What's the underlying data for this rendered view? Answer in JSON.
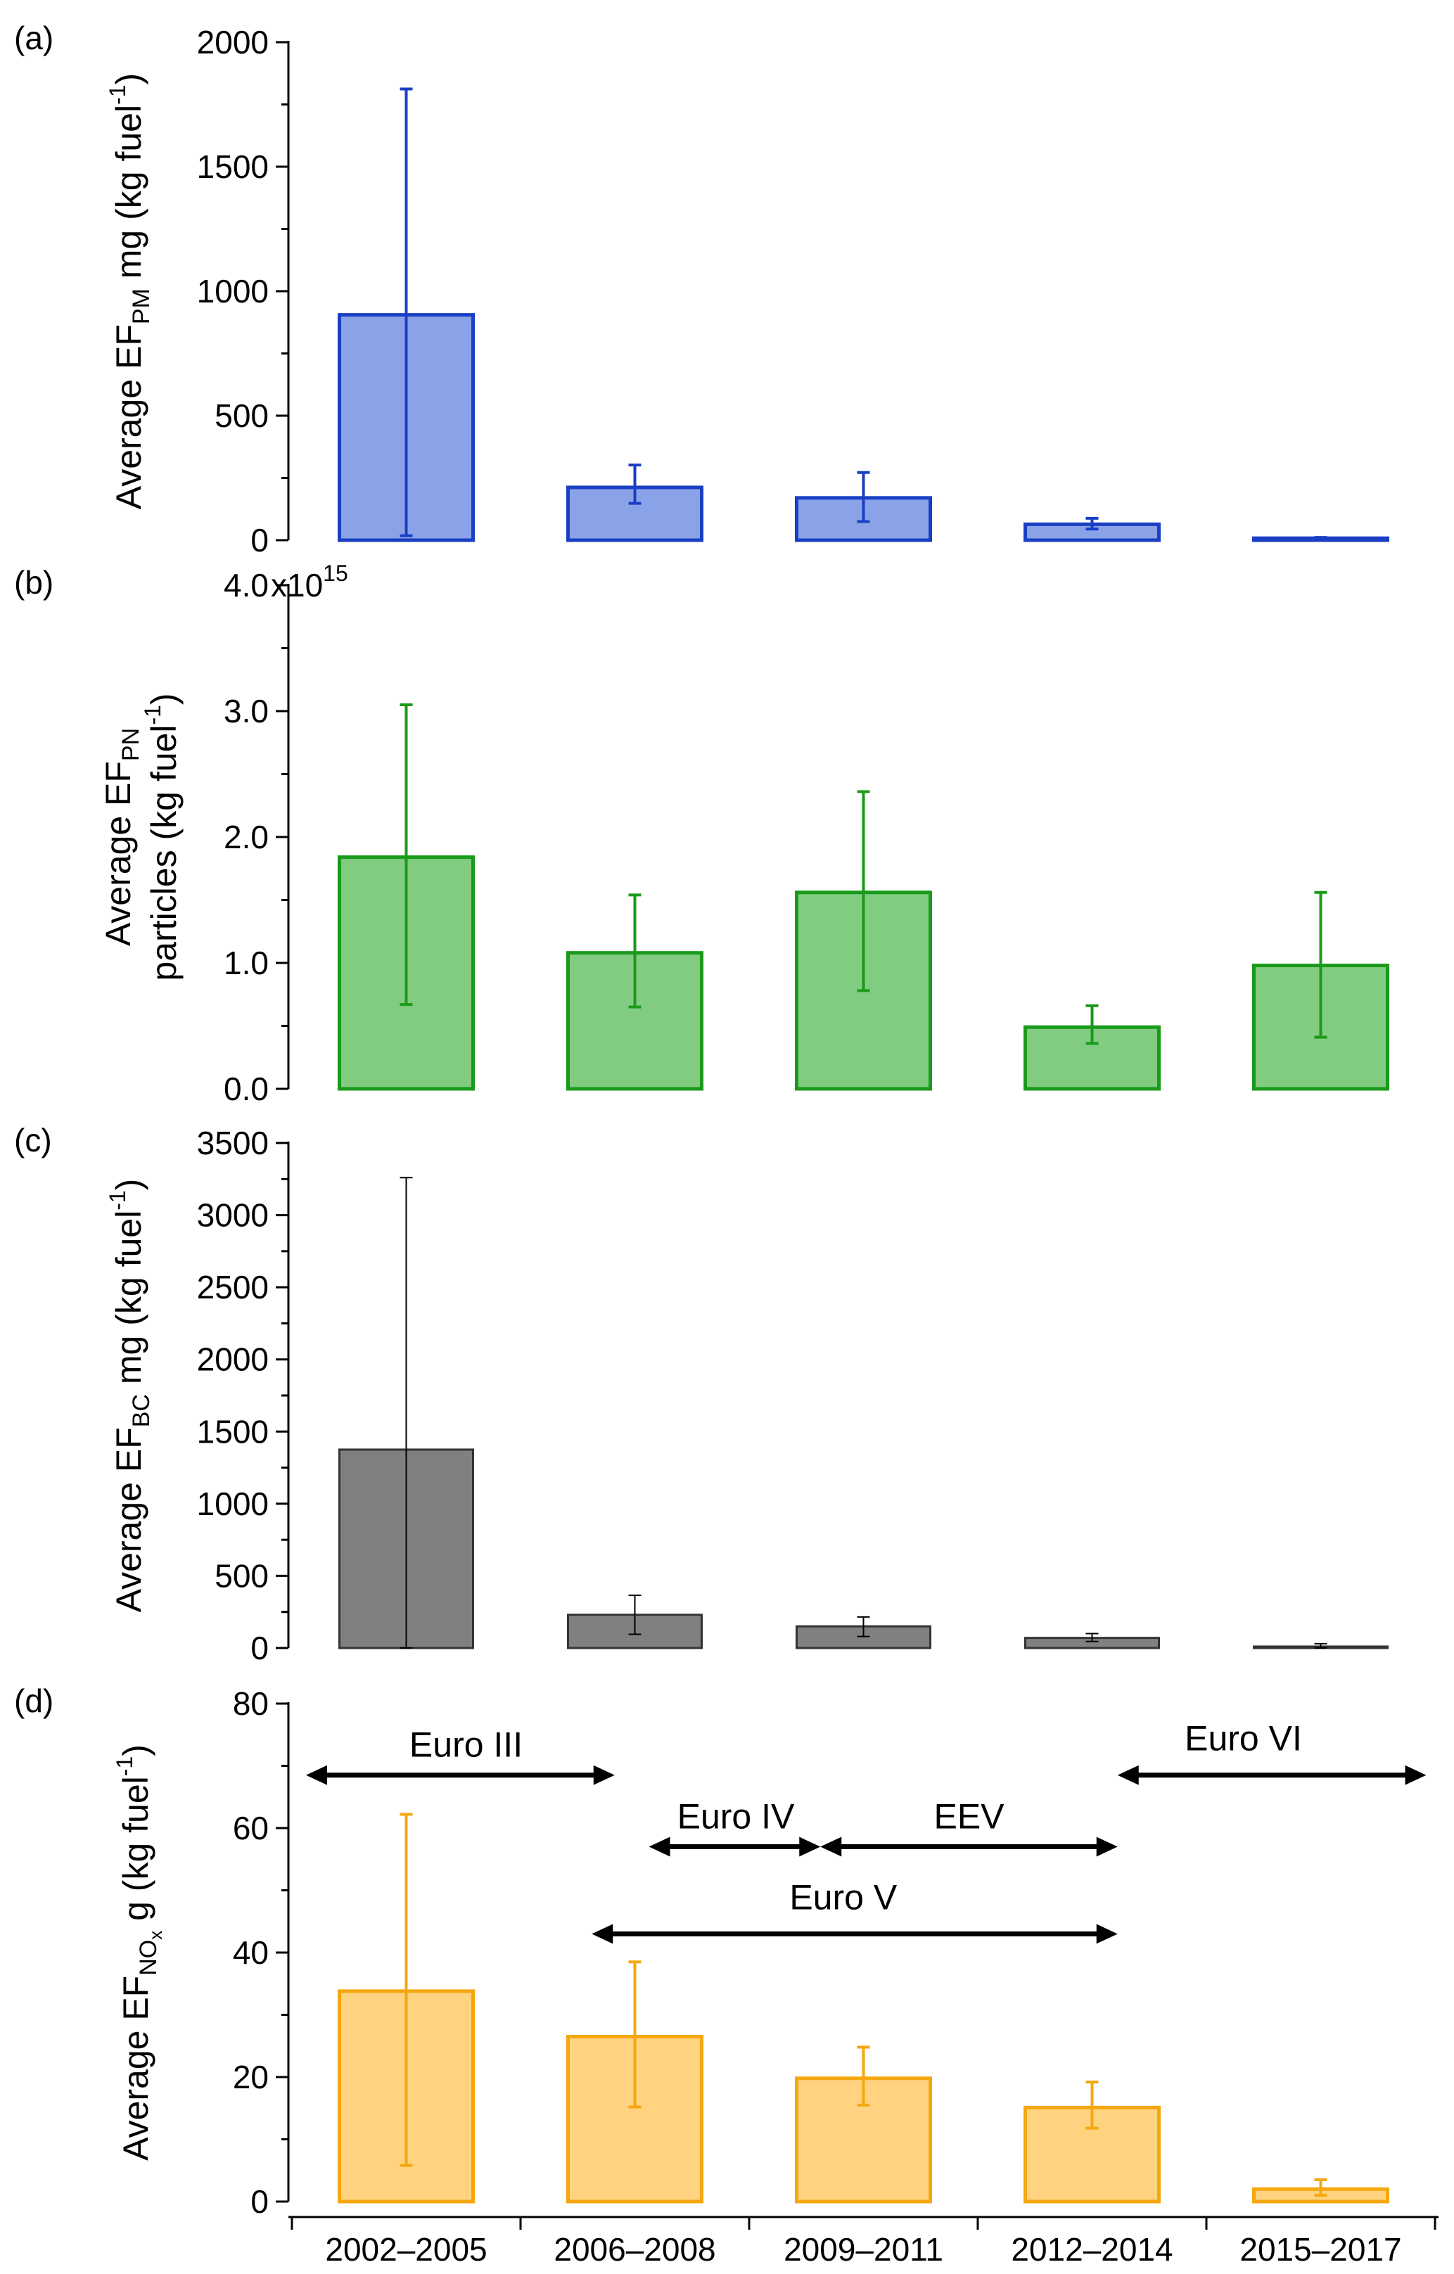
{
  "chart_data": [
    {
      "type": "bar",
      "panel_label": "(a)",
      "categories": [
        "2002–2005",
        "2006–2008",
        "2009–2011",
        "2012–2014",
        "2015–2017"
      ],
      "values": [
        905,
        212,
        170,
        64,
        8
      ],
      "error_low": [
        18,
        148,
        75,
        45,
        5
      ],
      "error_high": [
        1812,
        302,
        272,
        88,
        11
      ],
      "ylim": [
        0,
        2000
      ],
      "yticks": [
        0,
        500,
        1000,
        1500,
        2000
      ],
      "ytick_labels": [
        "0",
        "500",
        "1000",
        "1500",
        "2000"
      ],
      "ylabel": {
        "main": "Average EF",
        "sub": "PM",
        "rest": " mg (kg fuel",
        "sup": "-1",
        "close": ")"
      },
      "color_fill": "#8aa3e8",
      "color_edge": "#1a3fc4"
    },
    {
      "type": "bar",
      "panel_label": "(b)",
      "categories": [
        "2002–2005",
        "2006–2008",
        "2009–2011",
        "2012–2014",
        "2015–2017"
      ],
      "values": [
        1840000000000000.0,
        1080000000000000.0,
        1560000000000000.0,
        490000000000000.0,
        980000000000000.0
      ],
      "error_low": [
        670000000000000.0,
        650000000000000.0,
        780000000000000.0,
        360000000000000.0,
        410000000000000.0
      ],
      "error_high": [
        3050000000000000.0,
        1540000000000000.0,
        2360000000000000.0,
        660000000000000.0,
        1560000000000000.0
      ],
      "ylim": [
        0,
        4000000000000000.0
      ],
      "yticks": [
        0,
        1000000000000000.0,
        2000000000000000.0,
        3000000000000000.0,
        4000000000000000.0
      ],
      "ytick_labels": [
        "0.0",
        "1.0",
        "2.0",
        "3.0",
        "4.0"
      ],
      "exponent_label": {
        "base": "x10",
        "sup": "15"
      },
      "ylabel": {
        "main": "Average EF",
        "sub": "PN",
        "line2": "particles (kg fuel",
        "sup": "-1",
        "close": ")"
      },
      "color_fill": "#82cc82",
      "color_edge": "#1a9a1a"
    },
    {
      "type": "bar",
      "panel_label": "(c)",
      "categories": [
        "2002–2005",
        "2006–2008",
        "2009–2011",
        "2012–2014",
        "2015–2017"
      ],
      "values": [
        1375,
        230,
        150,
        70,
        10
      ],
      "error_low": [
        0,
        95,
        80,
        45,
        0
      ],
      "error_high": [
        3260,
        365,
        215,
        100,
        30
      ],
      "ylim": [
        0,
        3500
      ],
      "yticks": [
        0,
        500,
        1000,
        1500,
        2000,
        2500,
        3000,
        3500
      ],
      "ytick_labels": [
        "0",
        "500",
        "1000",
        "1500",
        "2000",
        "2500",
        "3000",
        "3500"
      ],
      "ylabel": {
        "main": "Average EF",
        "sub": "BC",
        "rest": " mg (kg fuel",
        "sup": "-1",
        "close": ")"
      },
      "color_fill": "#808080",
      "color_edge": "#333333"
    },
    {
      "type": "bar",
      "panel_label": "(d)",
      "categories": [
        "2002–2005",
        "2006–2008",
        "2009–2011",
        "2012–2014",
        "2015–2017"
      ],
      "values": [
        33.8,
        26.5,
        19.8,
        15.1,
        2.0
      ],
      "error_low": [
        5.8,
        15.2,
        15.5,
        11.8,
        1.0
      ],
      "error_high": [
        62.2,
        38.5,
        24.8,
        19.2,
        3.5
      ],
      "ylim": [
        0,
        80
      ],
      "yticks": [
        0,
        20,
        40,
        60,
        80
      ],
      "ytick_labels": [
        "0",
        "20",
        "40",
        "60",
        "80"
      ],
      "ylabel": {
        "main": "Average EF",
        "sub": "NO",
        "subsub": "x",
        "rest": " g (kg fuel",
        "sup": "-1",
        "close": ")"
      },
      "color_fill": "#ffd37f",
      "color_edge": "#f5a70f",
      "annotations": [
        {
          "label": "Euro III",
          "x_start": 0.0,
          "x_end": 1.35,
          "y": 68.5,
          "label_y": 73.5,
          "label_x": 0.7
        },
        {
          "label": "Euro IV",
          "x_start": 1.5,
          "x_end": 2.25,
          "y": 57,
          "label_y": 62,
          "label_x": 1.88
        },
        {
          "label": "EEV",
          "x_start": 2.25,
          "x_end": 3.55,
          "y": 57,
          "label_y": 62,
          "label_x": 2.9
        },
        {
          "label": "Euro V",
          "x_start": 1.25,
          "x_end": 3.55,
          "y": 43,
          "label_y": 49,
          "label_x": 2.35
        },
        {
          "label": "Euro VI",
          "x_start": 3.55,
          "x_end": 4.9,
          "y": 68.5,
          "label_y": 74.5,
          "label_x": 4.1
        }
      ]
    }
  ],
  "x_categories_shared": [
    "2002–2005",
    "2006–2008",
    "2009–2011",
    "2012–2014",
    "2015–2017"
  ]
}
